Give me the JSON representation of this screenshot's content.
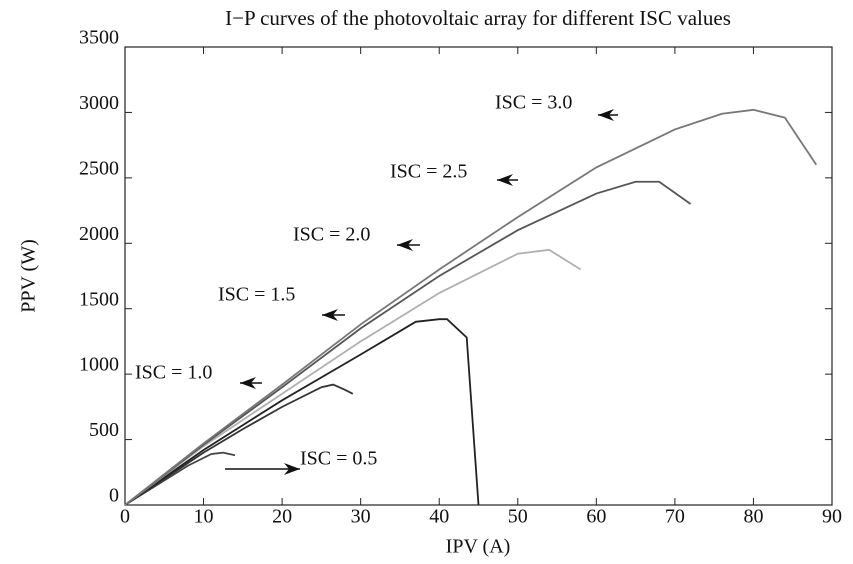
{
  "chart_data": {
    "type": "line",
    "title": "I−P curves of the photovoltaic array for different ISC values",
    "x_label": "IPV (A)",
    "y_label": "PPV (W)",
    "xlim": [
      0,
      90
    ],
    "ylim": [
      0,
      3500
    ],
    "xticks": [
      0,
      10,
      20,
      30,
      40,
      50,
      60,
      70,
      80,
      90
    ],
    "yticks": [
      0,
      500,
      1000,
      1500,
      2000,
      2500,
      3000,
      3500
    ],
    "grid": false,
    "series": [
      {
        "name": "ISC = 0.5",
        "color": "#444444",
        "x": [
          0,
          4,
          8,
          11,
          12.5,
          14
        ],
        "values": [
          0,
          150,
          300,
          390,
          400,
          380
        ]
      },
      {
        "name": "ISC = 1.0",
        "color": "#333333",
        "x": [
          0,
          5,
          10,
          15,
          20,
          25,
          26.5,
          28,
          29
        ],
        "values": [
          0,
          200,
          400,
          580,
          750,
          900,
          920,
          880,
          850
        ]
      },
      {
        "name": "ISC = 1.5",
        "color": "#222222",
        "x": [
          0,
          10,
          20,
          30,
          37,
          40,
          41,
          43.5,
          45
        ],
        "values": [
          0,
          420,
          800,
          1150,
          1400,
          1420,
          1420,
          1280,
          0
        ]
      },
      {
        "name": "ISC = 2.0",
        "color": "#b0b0b0",
        "x": [
          0,
          10,
          20,
          30,
          40,
          50,
          54,
          58
        ],
        "values": [
          0,
          450,
          850,
          1250,
          1620,
          1920,
          1950,
          1800
        ]
      },
      {
        "name": "ISC = 2.5",
        "color": "#555555",
        "x": [
          0,
          10,
          20,
          30,
          40,
          50,
          60,
          65,
          68,
          72
        ],
        "values": [
          0,
          460,
          900,
          1350,
          1750,
          2100,
          2380,
          2470,
          2470,
          2300
        ]
      },
      {
        "name": "ISC = 3.0",
        "color": "#777777",
        "x": [
          0,
          10,
          20,
          30,
          40,
          50,
          60,
          70,
          76,
          80,
          84,
          88
        ],
        "values": [
          0,
          470,
          920,
          1380,
          1800,
          2200,
          2580,
          2870,
          2990,
          3020,
          2960,
          2600
        ]
      }
    ]
  }
}
